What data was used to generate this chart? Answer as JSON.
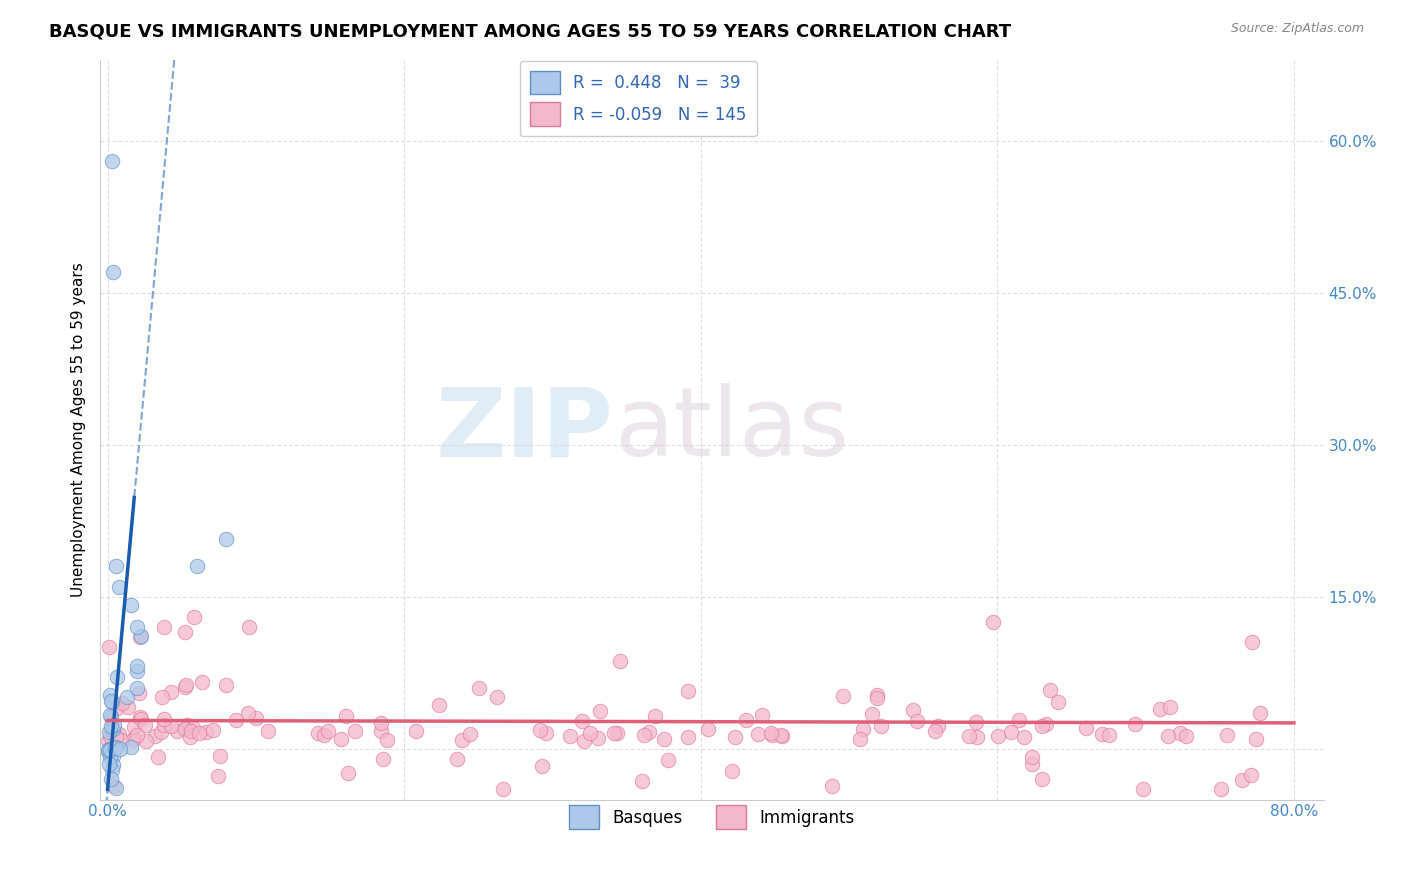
{
  "title": "BASQUE VS IMMIGRANTS UNEMPLOYMENT AMONG AGES 55 TO 59 YEARS CORRELATION CHART",
  "source_text": "Source: ZipAtlas.com",
  "ylabel": "Unemployment Among Ages 55 to 59 years",
  "xlim": [
    -0.005,
    0.82
  ],
  "ylim": [
    -0.05,
    0.68
  ],
  "yticks": [
    0.0,
    0.15,
    0.3,
    0.45,
    0.6
  ],
  "ytick_labels": [
    "",
    "15.0%",
    "30.0%",
    "45.0%",
    "60.0%"
  ],
  "xticks": [
    0.0,
    0.2,
    0.4,
    0.6,
    0.8
  ],
  "xtick_labels": [
    "0.0%",
    "",
    "",
    "",
    "80.0%"
  ],
  "watermark_zip": "ZIP",
  "watermark_atlas": "atlas",
  "basque_R": 0.448,
  "basque_N": 39,
  "immigrant_R": -0.059,
  "immigrant_N": 145,
  "basque_dot_color": "#adc8e8",
  "basque_edge_color": "#6090c8",
  "basque_line_color": "#1a5cb0",
  "immigrant_dot_color": "#f4b8cc",
  "immigrant_edge_color": "#e07898",
  "immigrant_line_color": "#e0607a",
  "grid_color": "#cccccc",
  "background_color": "#ffffff",
  "legend_label_basque": "Basques",
  "legend_label_immigrant": "Immigrants",
  "title_fontsize": 13,
  "axis_label_fontsize": 11,
  "tick_fontsize": 11,
  "legend_fontsize": 12
}
